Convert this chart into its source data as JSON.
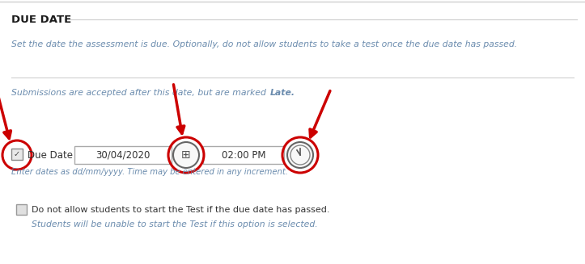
{
  "bg_color": "#ffffff",
  "border_color": "#cccccc",
  "title": "DUE DATE",
  "title_color": "#1a1a1a",
  "title_fontsize": 9.5,
  "desc_text": "Set the date the assessment is due. Optionally, do not allow students to take a test once the due date has passed.",
  "desc_color": "#6b8cae",
  "submissions_text": "Submissions are accepted after this date, but are marked ",
  "submissions_bold": "Late.",
  "submissions_color": "#6b8cae",
  "label_text": "Due Date",
  "date_text": "30/04/2020",
  "time_text": "02:00 PM",
  "hint_text": "Enter dates as dd/mm/yyyy. Time may be entered in any increment.",
  "hint_color": "#6b8cae",
  "checkbox_label_part1": "Do not allow students to start the Test if the due date has passed.",
  "checkbox_label_color": "#333333",
  "checkbox_sub": "Students will be unable to start the Test if this option is selected.",
  "checkbox_sub_color": "#6b8cae",
  "input_border": "#aaaaaa",
  "input_bg": "#ffffff",
  "circle_color": "#cc0000",
  "arrow_color": "#cc0000",
  "input_text_color": "#333333",
  "section_line_color": "#d0d0d0",
  "icon_border": "#666666",
  "icon_bg": "#f8f8f8"
}
